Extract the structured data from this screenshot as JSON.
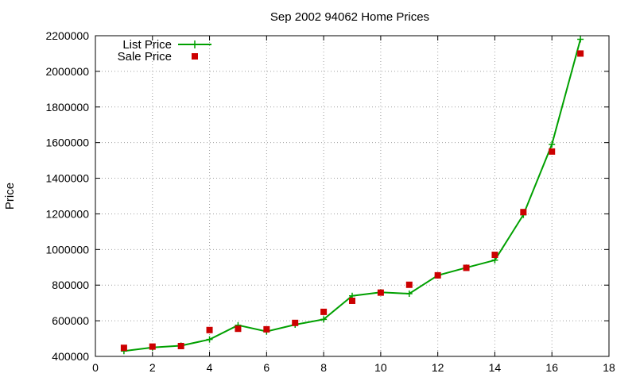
{
  "chart_data": {
    "type": "line",
    "title": "Sep 2002 94062 Home Prices",
    "xlabel": "",
    "ylabel": "Price",
    "xlim": [
      0,
      18
    ],
    "ylim": [
      400000,
      2200000
    ],
    "x_ticks": [
      "0",
      "2",
      "4",
      "6",
      "8",
      "10",
      "12",
      "14",
      "16",
      "18"
    ],
    "y_ticks": [
      "400000",
      "600000",
      "800000",
      "1000000",
      "1200000",
      "1400000",
      "1600000",
      "1800000",
      "2000000",
      "2200000"
    ],
    "grid": true,
    "legend_position": "top-left",
    "x": [
      1,
      2,
      3,
      4,
      5,
      6,
      7,
      8,
      9,
      10,
      11,
      12,
      13,
      14,
      15,
      16,
      17
    ],
    "series": [
      {
        "name": "List Price",
        "style": "lines+plus-markers",
        "color": "#00a000",
        "values": [
          430000,
          450000,
          460000,
          495000,
          575000,
          540000,
          578000,
          608000,
          740000,
          760000,
          752000,
          855000,
          898000,
          940000,
          1195000,
          1590000,
          2180000
        ]
      },
      {
        "name": "Sale Price",
        "style": "square-markers",
        "color": "#cc0000",
        "values": [
          448000,
          455000,
          458000,
          548000,
          555000,
          552000,
          588000,
          650000,
          712000,
          758000,
          802000,
          855000,
          897000,
          970000,
          1210000,
          1550000,
          2100000
        ]
      }
    ]
  }
}
